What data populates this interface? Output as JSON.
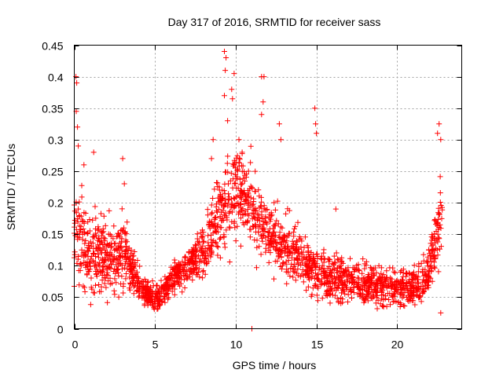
{
  "chart_data": {
    "type": "scatter",
    "title": "Day 317 of 2016, SRMTID for receiver sass",
    "xlabel": "GPS time / hours",
    "ylabel": "SRMTID / TECUs",
    "xlim": [
      0,
      24
    ],
    "ylim": [
      0,
      0.45
    ],
    "xticks": [
      0,
      5,
      10,
      15,
      20
    ],
    "xtick_labels": [
      "0",
      "5",
      "10",
      "15",
      "20"
    ],
    "yticks": [
      0,
      0.05,
      0.1,
      0.15,
      0.2,
      0.25,
      0.3,
      0.35,
      0.4,
      0.45
    ],
    "ytick_labels": [
      "0",
      "0.05",
      "0.1",
      "0.15",
      "0.2",
      "0.25",
      "0.3",
      "0.35",
      "0.4",
      "0.45"
    ],
    "grid": true,
    "marker": "+",
    "color": "#ff0000",
    "trend": {
      "x": [
        0,
        0.5,
        1,
        1.5,
        2,
        2.5,
        3,
        3.5,
        4,
        4.5,
        5,
        5.5,
        6,
        6.5,
        7,
        7.5,
        8,
        8.5,
        9,
        9.5,
        10,
        10.5,
        11,
        11.5,
        12,
        12.5,
        13,
        13.5,
        14,
        14.5,
        15,
        15.5,
        16,
        16.5,
        17,
        17.5,
        18,
        18.5,
        19,
        19.5,
        20,
        20.5,
        21,
        21.5,
        22,
        22.5,
        22.8
      ],
      "y": [
        0.15,
        0.14,
        0.13,
        0.12,
        0.115,
        0.11,
        0.13,
        0.1,
        0.07,
        0.055,
        0.05,
        0.06,
        0.075,
        0.09,
        0.1,
        0.11,
        0.12,
        0.14,
        0.18,
        0.2,
        0.22,
        0.21,
        0.19,
        0.17,
        0.15,
        0.14,
        0.13,
        0.12,
        0.11,
        0.1,
        0.09,
        0.085,
        0.08,
        0.075,
        0.075,
        0.07,
        0.07,
        0.068,
        0.065,
        0.062,
        0.06,
        0.07,
        0.065,
        0.07,
        0.09,
        0.15,
        0.2
      ]
    },
    "spread": {
      "x": [
        0,
        1,
        2,
        3,
        4,
        5,
        6,
        7,
        8,
        9,
        10,
        11,
        12,
        13,
        14,
        15,
        16,
        17,
        18,
        19,
        20,
        21,
        22,
        22.8
      ],
      "y": [
        0.06,
        0.055,
        0.05,
        0.05,
        0.02,
        0.018,
        0.02,
        0.025,
        0.04,
        0.06,
        0.06,
        0.055,
        0.045,
        0.04,
        0.035,
        0.035,
        0.03,
        0.03,
        0.03,
        0.025,
        0.025,
        0.025,
        0.03,
        0.06
      ]
    },
    "outliers": [
      {
        "x": 0.1,
        "y": 0.4
      },
      {
        "x": 0.15,
        "y": 0.39
      },
      {
        "x": 0.12,
        "y": 0.345
      },
      {
        "x": 0.2,
        "y": 0.32
      },
      {
        "x": 0.25,
        "y": 0.29
      },
      {
        "x": 0.6,
        "y": 0.26
      },
      {
        "x": 1.2,
        "y": 0.28
      },
      {
        "x": 3.0,
        "y": 0.27
      },
      {
        "x": 3.1,
        "y": 0.23
      },
      {
        "x": 9.3,
        "y": 0.44
      },
      {
        "x": 9.4,
        "y": 0.43
      },
      {
        "x": 9.35,
        "y": 0.41
      },
      {
        "x": 9.9,
        "y": 0.405
      },
      {
        "x": 9.75,
        "y": 0.38
      },
      {
        "x": 9.8,
        "y": 0.365
      },
      {
        "x": 9.3,
        "y": 0.37
      },
      {
        "x": 9.5,
        "y": 0.33
      },
      {
        "x": 10.2,
        "y": 0.3
      },
      {
        "x": 11.6,
        "y": 0.4
      },
      {
        "x": 11.75,
        "y": 0.4
      },
      {
        "x": 11.7,
        "y": 0.36
      },
      {
        "x": 11.6,
        "y": 0.34
      },
      {
        "x": 12.7,
        "y": 0.325
      },
      {
        "x": 12.8,
        "y": 0.3
      },
      {
        "x": 14.9,
        "y": 0.35
      },
      {
        "x": 14.95,
        "y": 0.325
      },
      {
        "x": 15.0,
        "y": 0.31
      },
      {
        "x": 22.6,
        "y": 0.325
      },
      {
        "x": 22.5,
        "y": 0.31
      },
      {
        "x": 22.7,
        "y": 0.3
      },
      {
        "x": 8.5,
        "y": 0.27
      },
      {
        "x": 8.6,
        "y": 0.3
      },
      {
        "x": 10.4,
        "y": 0.28
      },
      {
        "x": 11.0,
        "y": 0.0
      },
      {
        "x": 16.2,
        "y": 0.19
      },
      {
        "x": 22.7,
        "y": 0.025
      }
    ]
  }
}
